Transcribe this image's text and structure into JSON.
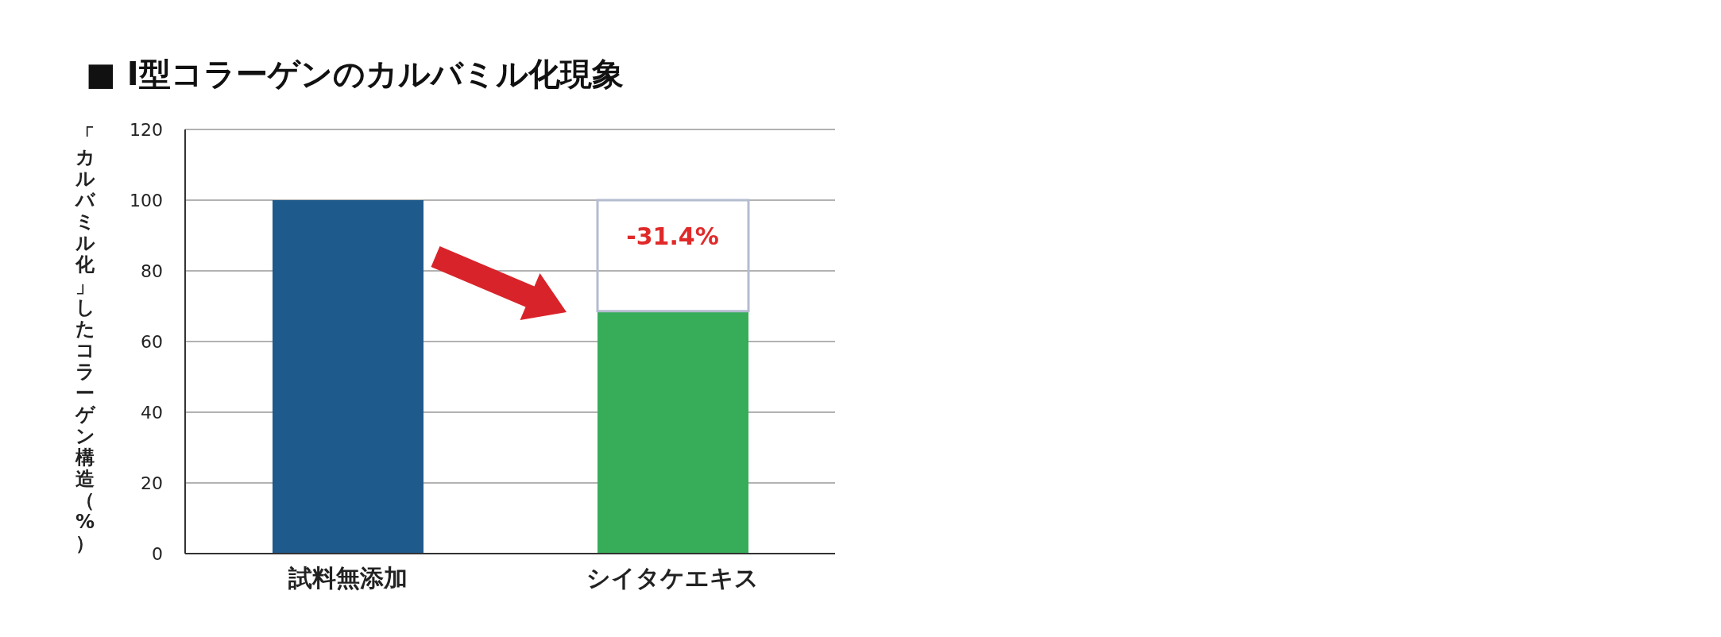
{
  "chart_data": {
    "type": "bar",
    "title": "■ Ⅰ型コラーゲンのカルバミル化現象",
    "ylabel": "「カルバミル化」したコラーゲン構造（%）",
    "categories": [
      "試料無添加",
      "シイタケエキス"
    ],
    "stacked": true,
    "series": [
      {
        "color": "#1f5a8c",
        "colors": [
          "#1f5a8c",
          "#37ad5a"
        ],
        "values": [
          100,
          68.6
        ]
      },
      {
        "color": "#b4bccf",
        "values": [
          null,
          31.4
        ]
      }
    ],
    "annotations": [
      {
        "text": "-31.4%",
        "x": "シイタケエキス",
        "y": 100
      }
    ],
    "ylim": [
      0,
      120
    ],
    "yticks": [
      0,
      20,
      40,
      60,
      80,
      100,
      120
    ],
    "grid": "y"
  }
}
